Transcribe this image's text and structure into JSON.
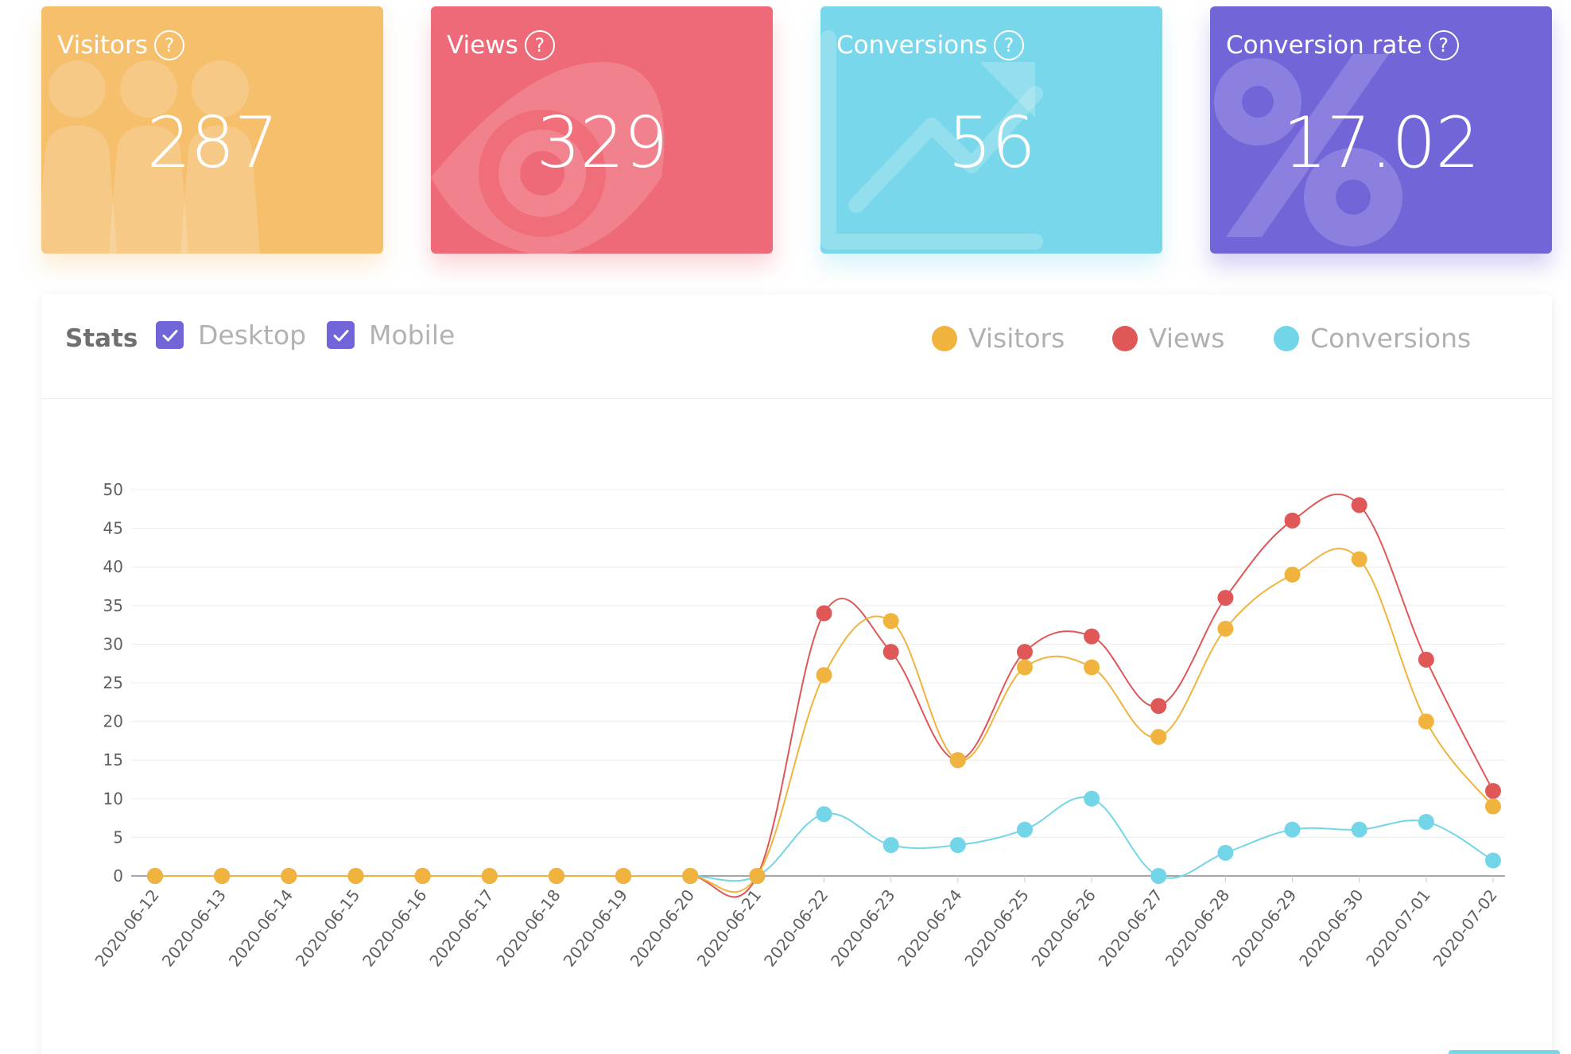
{
  "cards": [
    {
      "title": "Visitors",
      "help": "?",
      "value": "287",
      "color": "#f5bf6c",
      "icon": "people-icon"
    },
    {
      "title": "Views",
      "help": "?",
      "value": "329",
      "color": "#ef6a78",
      "icon": "eye-icon"
    },
    {
      "title": "Conversions",
      "help": "?",
      "value": "56",
      "color": "#78d7ea",
      "icon": "trend-up-icon"
    },
    {
      "title": "Conversion rate",
      "help": "?",
      "value": "17.02",
      "color": "#7265d8",
      "icon": "percent-icon"
    }
  ],
  "panel": {
    "title": "Stats",
    "filters": [
      {
        "label": "Desktop",
        "checked": true
      },
      {
        "label": "Mobile",
        "checked": true
      }
    ]
  },
  "chart_data": {
    "type": "line",
    "x": [
      "2020-06-12",
      "2020-06-13",
      "2020-06-14",
      "2020-06-15",
      "2020-06-16",
      "2020-06-17",
      "2020-06-18",
      "2020-06-19",
      "2020-06-20",
      "2020-06-21",
      "2020-06-22",
      "2020-06-23",
      "2020-06-24",
      "2020-06-25",
      "2020-06-26",
      "2020-06-27",
      "2020-06-28",
      "2020-06-29",
      "2020-06-30",
      "2020-07-01",
      "2020-07-02"
    ],
    "ylim": [
      0,
      50
    ],
    "yticks": [
      0,
      5,
      10,
      15,
      20,
      25,
      30,
      35,
      40,
      45,
      50
    ],
    "grid": true,
    "legend": "top-right",
    "series": [
      {
        "name": "Visitors",
        "color": "#f0b43e",
        "values": [
          0,
          0,
          0,
          0,
          0,
          0,
          0,
          0,
          0,
          0,
          26,
          33,
          15,
          27,
          27,
          18,
          32,
          39,
          41,
          20,
          9
        ]
      },
      {
        "name": "Views",
        "color": "#e05757",
        "values": [
          0,
          0,
          0,
          0,
          0,
          0,
          0,
          0,
          0,
          0,
          34,
          29,
          15,
          29,
          31,
          22,
          36,
          46,
          48,
          28,
          11
        ]
      },
      {
        "name": "Conversions",
        "color": "#72d6e8",
        "values": [
          0,
          0,
          0,
          0,
          0,
          0,
          0,
          0,
          0,
          0,
          8,
          4,
          4,
          6,
          10,
          0,
          3,
          6,
          6,
          7,
          2
        ]
      }
    ]
  }
}
